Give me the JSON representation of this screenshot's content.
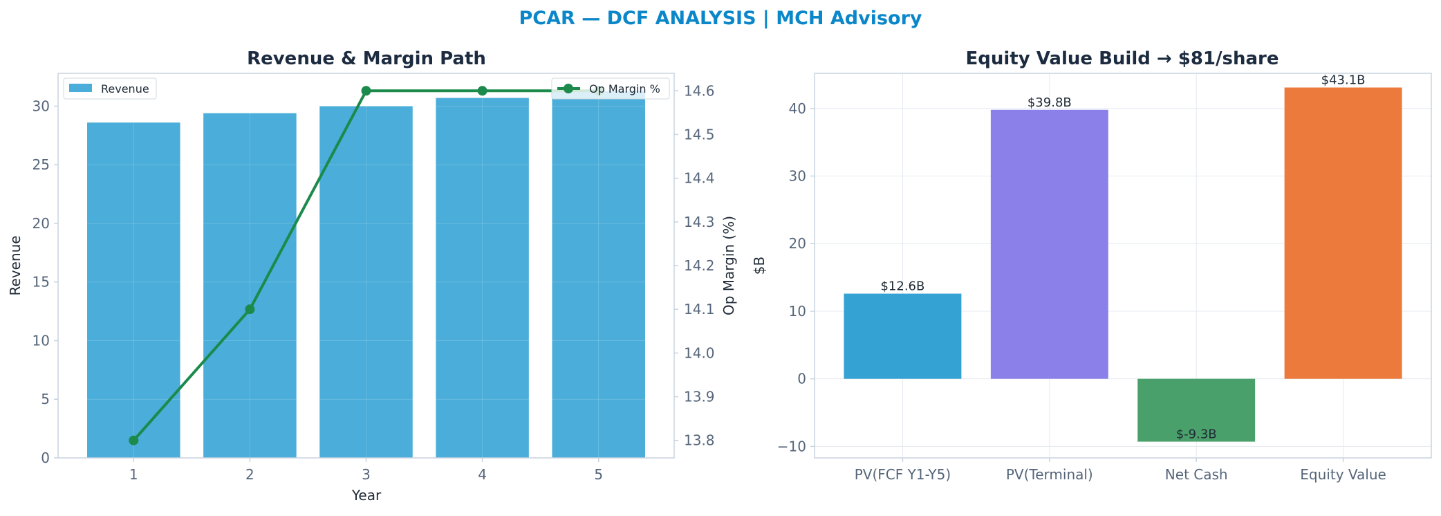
{
  "figure": {
    "title": "PCAR — DCF ANALYSIS | MCH Advisory",
    "colors": {
      "title": "#0b87c9",
      "subtitle": "#1c2b3f",
      "axis": "#c8d3df",
      "grid": "#e4eaf0",
      "tick": "#55657a"
    }
  },
  "chart_data": [
    {
      "type": "bar",
      "title": "Revenue & Margin Path",
      "xlabel": "Year",
      "ylabel": "Revenue",
      "y2label": "Op Margin (%)",
      "categories": [
        "1",
        "2",
        "3",
        "4",
        "5"
      ],
      "ylim": [
        0,
        32.8
      ],
      "yticks": [
        0,
        5,
        10,
        15,
        20,
        25,
        30
      ],
      "y2lim": [
        13.76,
        14.64
      ],
      "y2ticks": [
        13.8,
        13.9,
        14.0,
        14.1,
        14.2,
        14.3,
        14.4,
        14.5,
        14.6
      ],
      "grid": true,
      "series": [
        {
          "name": "Revenue",
          "kind": "bar",
          "axis": "left",
          "color": "#4badd9",
          "values": [
            28.6,
            29.4,
            30.0,
            30.7,
            31.3
          ]
        },
        {
          "name": "Op Margin %",
          "kind": "line",
          "axis": "right",
          "color": "#1b8a4b",
          "values": [
            13.8,
            14.1,
            14.6,
            14.6,
            14.6
          ]
        }
      ],
      "legend": [
        {
          "name": "Revenue",
          "placement": "upper-left"
        },
        {
          "name": "Op Margin %",
          "placement": "upper-right"
        }
      ]
    },
    {
      "type": "bar",
      "title": "Equity Value Build → $81/share",
      "ylabel": "$B",
      "categories": [
        "PV(FCF Y1-Y5)",
        "PV(Terminal)",
        "Net Cash",
        "Equity Value"
      ],
      "values": [
        12.6,
        39.8,
        -9.3,
        43.1
      ],
      "data_labels": [
        "$12.6B",
        "$39.8B",
        "$-9.3B",
        "$43.1B"
      ],
      "colors": [
        "#35a2d4",
        "#8b7fea",
        "#4aa06b",
        "#ec7a3c"
      ],
      "ylim": [
        -11.7,
        45.2
      ],
      "yticks": [
        -10,
        0,
        10,
        20,
        30,
        40
      ],
      "grid": true
    }
  ]
}
